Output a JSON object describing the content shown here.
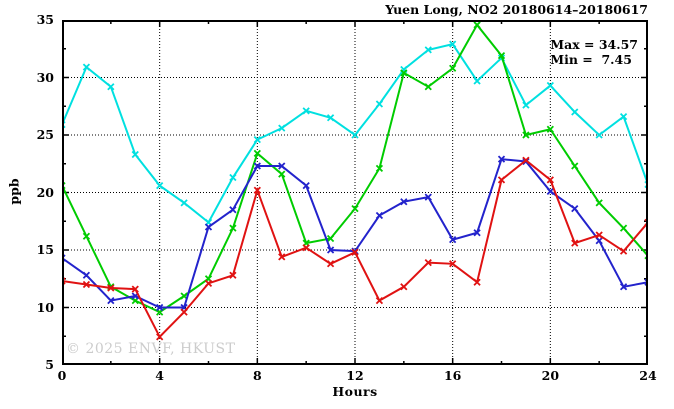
{
  "title": "Yuen Long, NO2 20180614–20180617",
  "annotation": {
    "max_label": "Max = 34.57",
    "min_label": "Min =  7.45"
  },
  "watermark": "© 2025 ENVF, HKUST",
  "chart_data": {
    "type": "line",
    "title": "Yuen Long, NO2 20180614–20180617",
    "xlabel": "Hours",
    "ylabel": "ppb",
    "xlim": [
      0,
      24
    ],
    "ylim": [
      5,
      35
    ],
    "xticks_major": [
      0,
      4,
      8,
      12,
      16,
      20,
      24
    ],
    "xtick_minor_step": 2,
    "yticks_major": [
      5,
      10,
      15,
      20,
      25,
      30,
      35
    ],
    "ytick_minor_step": 2.5,
    "grid_x": [
      4,
      8,
      12,
      16,
      20
    ],
    "grid_y": [
      10,
      15,
      20,
      25,
      30
    ],
    "grid_style": "dotted",
    "legend": "none",
    "marker": "x",
    "stats": {
      "max": 34.57,
      "min": 7.45
    },
    "x": [
      0,
      1,
      2,
      3,
      4,
      5,
      6,
      7,
      8,
      9,
      10,
      11,
      12,
      13,
      14,
      15,
      16,
      17,
      18,
      19,
      20,
      21,
      22,
      23,
      24
    ],
    "series": [
      {
        "name": "cyan-line",
        "color": "#00e0e0",
        "values": [
          25.9,
          30.9,
          29.2,
          23.3,
          20.6,
          19.1,
          17.4,
          21.3,
          24.6,
          25.6,
          27.1,
          26.5,
          25.0,
          27.7,
          30.7,
          32.4,
          32.9,
          29.7,
          31.7,
          27.6,
          29.3,
          27.0,
          25.0,
          26.6,
          20.7
        ]
      },
      {
        "name": "green-line",
        "color": "#00cc00",
        "values": [
          20.6,
          16.2,
          11.8,
          10.6,
          9.6,
          11.0,
          12.5,
          16.9,
          23.4,
          21.6,
          15.6,
          16.0,
          18.6,
          22.1,
          30.4,
          29.2,
          30.8,
          34.57,
          31.9,
          25.0,
          25.5,
          22.3,
          19.1,
          16.9,
          14.5
        ]
      },
      {
        "name": "blue-line",
        "color": "#2323cc",
        "values": [
          14.3,
          12.8,
          10.6,
          11.0,
          10.0,
          10.0,
          17.0,
          18.5,
          22.3,
          22.3,
          20.6,
          15.0,
          14.9,
          18.0,
          19.2,
          19.6,
          15.9,
          16.5,
          22.9,
          22.7,
          20.1,
          18.6,
          15.8,
          11.8,
          12.2
        ]
      },
      {
        "name": "red-line",
        "color": "#e01212",
        "values": [
          12.3,
          12.0,
          11.7,
          11.6,
          7.45,
          9.6,
          12.1,
          12.8,
          20.2,
          14.4,
          15.2,
          13.8,
          14.8,
          10.6,
          11.8,
          13.9,
          13.8,
          12.2,
          21.1,
          22.8,
          21.1,
          15.6,
          16.3,
          14.9,
          17.4
        ]
      }
    ]
  }
}
